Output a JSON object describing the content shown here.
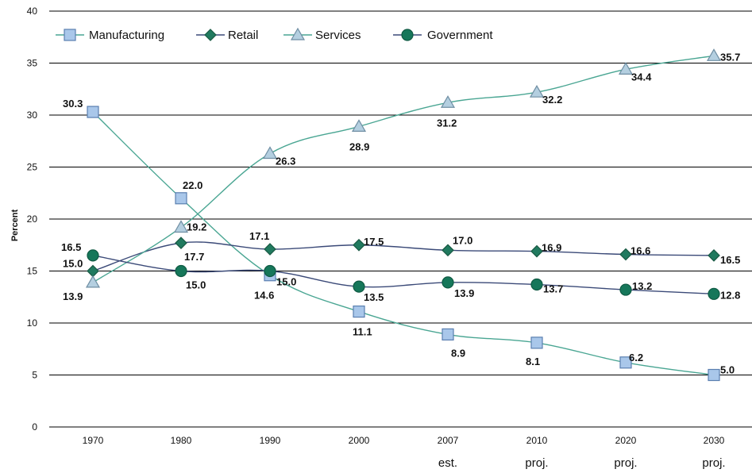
{
  "chart_data": {
    "type": "line",
    "ylabel": "Percent",
    "xlabel": "",
    "ylim": [
      0,
      40
    ],
    "yticks": [
      0,
      5,
      10,
      15,
      20,
      25,
      30,
      35,
      40
    ],
    "grid": true,
    "legend_position": "top-left",
    "categories": [
      "1970",
      "1980",
      "1990",
      "2000",
      "2007",
      "2010",
      "2020",
      "2030"
    ],
    "category_sublabels": [
      "",
      "",
      "",
      "",
      "est.",
      "proj.",
      "proj.",
      "proj."
    ],
    "series": [
      {
        "name": "Manufacturing",
        "marker": "square",
        "color": "#4aa693",
        "marker_fill": "#a9c7ea",
        "marker_stroke": "#5a7fb0",
        "values": [
          30.3,
          22.0,
          14.6,
          11.1,
          8.9,
          8.1,
          6.2,
          5.0
        ],
        "labels": [
          "30.3",
          "22.0",
          "14.6",
          "11.1",
          "8.9",
          "8.1",
          "6.2",
          "5.0"
        ]
      },
      {
        "name": "Retail",
        "marker": "diamond",
        "color": "#3b4a78",
        "marker_fill": "#217a5f",
        "marker_stroke": "#185943",
        "values": [
          15.0,
          17.7,
          17.1,
          17.5,
          17.0,
          16.9,
          16.6,
          16.5
        ],
        "labels": [
          "15.0",
          "17.7",
          "17.1",
          "17.5",
          "17.0",
          "16.9",
          "16.6",
          "16.5"
        ]
      },
      {
        "name": "Services",
        "marker": "triangle",
        "color": "#4aa693",
        "marker_fill": "#b4cfe0",
        "marker_stroke": "#6f8ea3",
        "values": [
          13.9,
          19.2,
          26.3,
          28.9,
          31.2,
          32.2,
          34.4,
          35.7
        ],
        "labels": [
          "13.9",
          "19.2",
          "26.3",
          "28.9",
          "31.2",
          "32.2",
          "34.4",
          "35.7"
        ]
      },
      {
        "name": "Government",
        "marker": "circle",
        "color": "#3b4a78",
        "marker_fill": "#16775a",
        "marker_stroke": "#0f5a43",
        "values": [
          16.5,
          15.0,
          15.0,
          13.5,
          13.9,
          13.7,
          13.2,
          12.8
        ],
        "labels": [
          "16.5",
          "15.0",
          "15.0",
          "13.5",
          "13.9",
          "13.7",
          "13.2",
          "12.8"
        ]
      }
    ]
  }
}
